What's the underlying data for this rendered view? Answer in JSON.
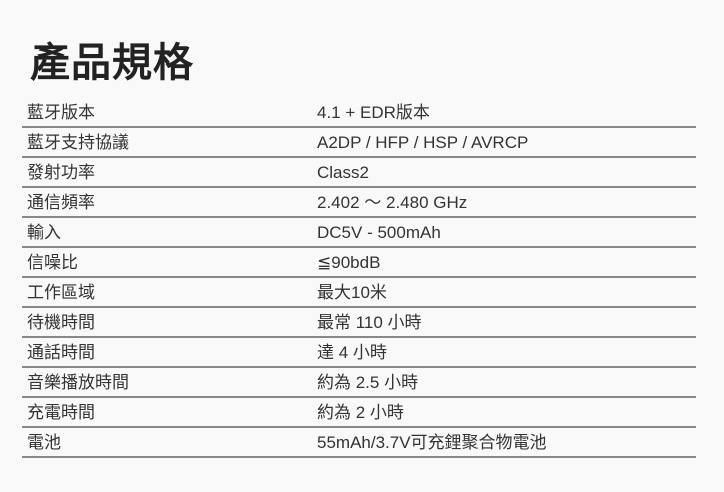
{
  "title": "產品規格",
  "specs": [
    {
      "label": "藍牙版本",
      "value": "4.1 + EDR版本"
    },
    {
      "label": "藍牙支持協議",
      "value": "A2DP / HFP / HSP / AVRCP"
    },
    {
      "label": "發射功率",
      "value": "Class2"
    },
    {
      "label": "通信頻率",
      "value": "2.402 ～ 2.480 GHz"
    },
    {
      "label": "輸入",
      "value": "DC5V - 500mAh"
    },
    {
      "label": "信噪比",
      "value": "≦90bdB"
    },
    {
      "label": "工作區域",
      "value": "最大10米"
    },
    {
      "label": "待機時間",
      "value": "最常 110 小時"
    },
    {
      "label": "通話時間",
      "value": "達 4 小時"
    },
    {
      "label": "音樂播放時間",
      "value": "約為 2.5 小時"
    },
    {
      "label": "充電時間",
      "value": "約為 2 小時"
    },
    {
      "label": "電池",
      "value": "55mAh/3.7V可充鋰聚合物電池"
    }
  ]
}
